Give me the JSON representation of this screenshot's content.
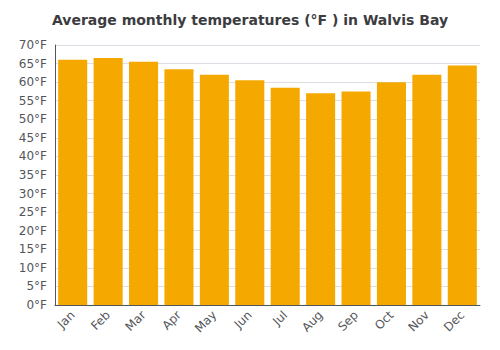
{
  "chart_data": {
    "type": "bar",
    "title": "Average monthly temperatures (°F ) in Walvis Bay",
    "categories": [
      "Jan",
      "Feb",
      "Mar",
      "Apr",
      "May",
      "Jun",
      "Jul",
      "Aug",
      "Sep",
      "Oct",
      "Nov",
      "Dec"
    ],
    "values": [
      66,
      66.5,
      65.5,
      63.5,
      62,
      60.5,
      58.5,
      57,
      57.5,
      60,
      62,
      64.5
    ],
    "color": "#F5A800",
    "ylim": [
      0,
      70
    ],
    "yticks": [
      {
        "value": 0,
        "label": "0°F"
      },
      {
        "value": 5,
        "label": "5°F"
      },
      {
        "value": 10,
        "label": "10°F"
      },
      {
        "value": 15,
        "label": "15°F"
      },
      {
        "value": 20,
        "label": "20°F"
      },
      {
        "value": 25,
        "label": "25°F"
      },
      {
        "value": 30,
        "label": "30°F"
      },
      {
        "value": 35,
        "label": "35°F"
      },
      {
        "value": 40,
        "label": "40°F"
      },
      {
        "value": 45,
        "label": "45°F"
      },
      {
        "value": 50,
        "label": "50°F"
      },
      {
        "value": 55,
        "label": "55°F"
      },
      {
        "value": 60,
        "label": "60°F"
      },
      {
        "value": 65,
        "label": "65°F"
      },
      {
        "value": 70,
        "label": "70°F"
      }
    ],
    "grid": true
  }
}
